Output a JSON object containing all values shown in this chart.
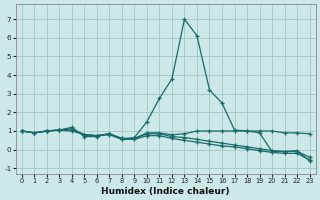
{
  "xlabel": "Humidex (Indice chaleur)",
  "background_color": "#cce8e8",
  "grid_color": "#aacaca",
  "line_color": "#1a6b6b",
  "x_values": [
    0,
    1,
    2,
    3,
    4,
    5,
    6,
    7,
    8,
    9,
    10,
    11,
    12,
    13,
    14,
    15,
    16,
    17,
    18,
    19,
    20,
    21,
    22,
    23
  ],
  "line_spike": [
    1.0,
    0.9,
    1.0,
    1.05,
    1.2,
    0.7,
    0.7,
    0.85,
    0.55,
    0.65,
    1.5,
    2.75,
    3.8,
    7.0,
    6.1,
    3.2,
    2.5,
    1.05,
    1.0,
    0.9,
    -0.1,
    -0.1,
    -0.05,
    -0.6
  ],
  "line_flat": [
    1.0,
    0.9,
    1.0,
    1.05,
    1.1,
    0.8,
    0.75,
    0.85,
    0.6,
    0.6,
    0.85,
    0.85,
    0.7,
    0.65,
    0.55,
    0.45,
    0.35,
    0.25,
    0.15,
    0.05,
    -0.05,
    -0.1,
    -0.1,
    -0.4
  ],
  "line_dec1": [
    1.0,
    0.9,
    1.0,
    1.05,
    1.0,
    0.8,
    0.75,
    0.8,
    0.55,
    0.55,
    0.75,
    0.75,
    0.6,
    0.5,
    0.4,
    0.3,
    0.2,
    0.15,
    0.05,
    -0.05,
    -0.15,
    -0.2,
    -0.2,
    -0.55
  ],
  "line_stay": [
    1.0,
    0.9,
    1.0,
    1.05,
    1.1,
    0.8,
    0.75,
    0.85,
    0.6,
    0.6,
    0.9,
    0.9,
    0.8,
    0.85,
    1.0,
    1.0,
    1.0,
    1.0,
    1.0,
    1.0,
    1.0,
    0.9,
    0.9,
    0.85
  ],
  "xlim": [
    -0.5,
    23.5
  ],
  "ylim": [
    -1.3,
    7.8
  ],
  "yticks": [
    -1,
    0,
    1,
    2,
    3,
    4,
    5,
    6,
    7
  ],
  "xticks": [
    0,
    1,
    2,
    3,
    4,
    5,
    6,
    7,
    8,
    9,
    10,
    11,
    12,
    13,
    14,
    15,
    16,
    17,
    18,
    19,
    20,
    21,
    22,
    23
  ]
}
